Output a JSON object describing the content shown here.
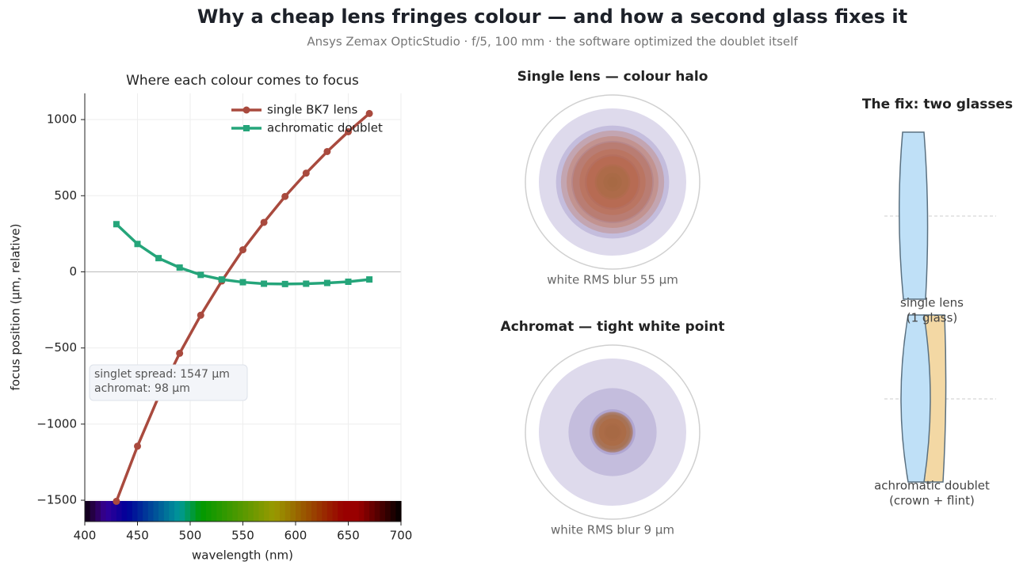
{
  "header": {
    "title": "Why a cheap lens fringes colour — and how a second glass fixes it",
    "subtitle": "Ansys Zemax OpticStudio · f/5, 100 mm · the software optimized the doublet itself"
  },
  "chart_data": {
    "type": "line",
    "title": "Where each colour comes to focus",
    "x_label": "wavelength  (nm)",
    "y_label": "focus position  (µm, relative)",
    "x": [
      430,
      450,
      470,
      490,
      510,
      530,
      550,
      570,
      590,
      610,
      630,
      650,
      670
    ],
    "series": [
      {
        "name": "single BK7 lens",
        "color": "#a94a3e",
        "marker": "circle",
        "values": [
          -1507,
          -1145,
          -820,
          -535,
          -285,
          -60,
          145,
          325,
          495,
          648,
          790,
          920,
          1040
        ]
      },
      {
        "name": "achromatic doublet",
        "color": "#25a57a",
        "marker": "square",
        "values": [
          313,
          183,
          90,
          28,
          -20,
          -50,
          -68,
          -78,
          -80,
          -78,
          -73,
          -65,
          -50
        ]
      }
    ],
    "xlim": [
      400,
      700
    ],
    "xticks": [
      400,
      450,
      500,
      550,
      600,
      650,
      700
    ],
    "ylim": [
      -1640,
      1172
    ],
    "yticks": [
      {
        "value": -1500,
        "label": "−1500"
      },
      {
        "value": -1000,
        "label": "−1000"
      },
      {
        "value": -500,
        "label": "−500"
      },
      0,
      500,
      1000
    ],
    "grid": true,
    "legend": "upper right",
    "annotation": [
      "singlet spread: 1547 µm",
      "achromat: 98 µm"
    ]
  },
  "spots": [
    {
      "title": "Single lens — colour halo",
      "caption": "white RMS blur 55 µm"
    },
    {
      "title": "Achromat — tight white point",
      "caption": "white RMS blur 9 µm"
    }
  ],
  "lenses": {
    "title": "The fix: two glasses",
    "single": [
      "single lens",
      "(1 glass)"
    ],
    "doublet": [
      "achromatic doublet",
      "(crown + flint)"
    ]
  }
}
